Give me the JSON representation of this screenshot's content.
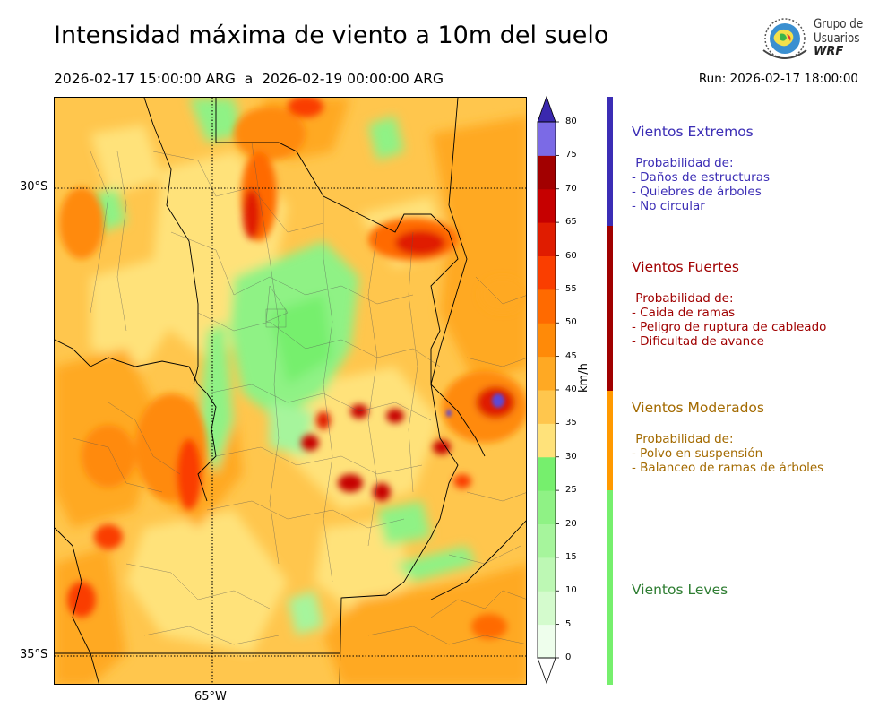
{
  "header": {
    "title": "Intensidad máxima de viento a 10m del suelo",
    "period": "2026-02-17 15:00:00 ARG  a  2026-02-19 00:00:00 ARG",
    "run": "Run: 2026-02-17 18:00:00"
  },
  "logo": {
    "line1": "Grupo de",
    "line2": "Usuarios",
    "line3": "WRF"
  },
  "map": {
    "lat_labels": [
      "30°S",
      "35°S"
    ],
    "lon_labels": [
      "65°W"
    ]
  },
  "colorbar": {
    "unit": "km/h",
    "ticks": [
      "0",
      "5",
      "10",
      "15",
      "20",
      "25",
      "30",
      "35",
      "40",
      "45",
      "50",
      "55",
      "60",
      "65",
      "70",
      "75",
      "80"
    ],
    "colors": [
      "#eefeec",
      "#d4fbcd",
      "#bdf8b4",
      "#a6f59c",
      "#8ff285",
      "#76ef6d",
      "#ffe27a",
      "#ffc64d",
      "#ffa923",
      "#ff8a08",
      "#ff6a00",
      "#fa3e00",
      "#e01c00",
      "#c60000",
      "#a20000",
      "#7b6ae6",
      "#5b48d6",
      "#4a32c4"
    ],
    "extend_low": "#ffffff",
    "extend_high": "#3a28ae"
  },
  "categories": [
    {
      "name": "Vientos Extremos",
      "color": "#3b2db5",
      "band": [
        65,
        80
      ],
      "text": " Probabilidad de:\n- Daños de estructuras\n- Quiebres de árboles\n- No circular"
    },
    {
      "name": "Vientos Fuertes",
      "color": "#a00000",
      "band": [
        40,
        65
      ],
      "text": " Probabilidad de:\n- Caida de ramas\n- Peligro de ruptura de cableado\n- Dificultad de avance"
    },
    {
      "name": "Vientos Moderados",
      "color": "#a36a00",
      "band": [
        25,
        40
      ],
      "text": " Probabilidad de:\n- Polvo en suspensión\n- Balanceo de ramas de árboles"
    },
    {
      "name": "Vientos Leves",
      "color": "#2e7d32",
      "band": [
        0,
        25
      ],
      "text": ""
    }
  ],
  "category_bar_colors": [
    "#3b2db5",
    "#a00000",
    "#ff9900",
    "#76ef6d"
  ]
}
